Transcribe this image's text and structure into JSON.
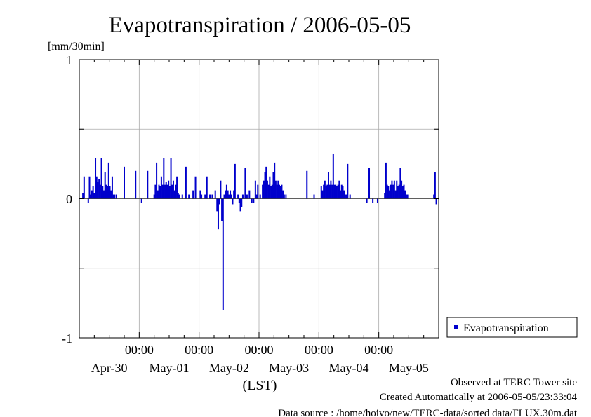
{
  "chart_data": {
    "type": "bar",
    "title": "Evapotranspiration / 2006-05-05",
    "ylabel": "[mm/30min]",
    "xlabel": "(LST)",
    "ylim": [
      -1,
      1
    ],
    "yticks": [
      "1",
      "0",
      "-1"
    ],
    "time_labels": [
      "00:00",
      "00:00",
      "00:00",
      "00:00",
      "00:00"
    ],
    "date_labels": [
      "Apr-30",
      "May-01",
      "May-02",
      "May-03",
      "May-04",
      "May-05"
    ],
    "grid": true,
    "legend_position": "right",
    "xrange_days": [
      0,
      6
    ],
    "series": [
      {
        "name": "Evapotranspiration",
        "color": "#0000cc",
        "points": [
          [
            0.06,
            0.04
          ],
          [
            0.08,
            0.16
          ],
          [
            0.15,
            -0.03
          ],
          [
            0.17,
            0.16
          ],
          [
            0.19,
            0.03
          ],
          [
            0.21,
            0.06
          ],
          [
            0.23,
            0.09
          ],
          [
            0.25,
            0.04
          ],
          [
            0.27,
            0.29
          ],
          [
            0.29,
            0.16
          ],
          [
            0.31,
            0.12
          ],
          [
            0.33,
            0.14
          ],
          [
            0.35,
            0.1
          ],
          [
            0.37,
            0.29
          ],
          [
            0.39,
            0.09
          ],
          [
            0.41,
            0.06
          ],
          [
            0.43,
            0.19
          ],
          [
            0.45,
            0.1
          ],
          [
            0.47,
            0.09
          ],
          [
            0.49,
            0.26
          ],
          [
            0.51,
            0.09
          ],
          [
            0.53,
            0.06
          ],
          [
            0.55,
            0.16
          ],
          [
            0.57,
            0.03
          ],
          [
            0.59,
            0.03
          ],
          [
            0.62,
            0.03
          ],
          [
            0.75,
            0.23
          ],
          [
            0.94,
            0.2
          ],
          [
            1.04,
            -0.03
          ],
          [
            1.14,
            0.2
          ],
          [
            1.25,
            0.03
          ],
          [
            1.27,
            0.1
          ],
          [
            1.29,
            0.26
          ],
          [
            1.31,
            0.06
          ],
          [
            1.33,
            0.1
          ],
          [
            1.35,
            0.09
          ],
          [
            1.37,
            0.16
          ],
          [
            1.39,
            0.1
          ],
          [
            1.41,
            0.29
          ],
          [
            1.43,
            0.1
          ],
          [
            1.45,
            0.12
          ],
          [
            1.47,
            0.1
          ],
          [
            1.49,
            0.13
          ],
          [
            1.51,
            0.09
          ],
          [
            1.53,
            0.29
          ],
          [
            1.55,
            0.1
          ],
          [
            1.57,
            0.13
          ],
          [
            1.59,
            0.06
          ],
          [
            1.61,
            0.1
          ],
          [
            1.63,
            0.16
          ],
          [
            1.65,
            0.04
          ],
          [
            1.67,
            0.03
          ],
          [
            1.72,
            0.03
          ],
          [
            1.78,
            0.23
          ],
          [
            1.83,
            0.03
          ],
          [
            1.9,
            0.06
          ],
          [
            1.94,
            0.16
          ],
          [
            2.02,
            0.06
          ],
          [
            2.04,
            0.03
          ],
          [
            2.1,
            0.03
          ],
          [
            2.13,
            0.16
          ],
          [
            2.18,
            0.03
          ],
          [
            2.22,
            0.03
          ],
          [
            2.27,
            0.06
          ],
          [
            2.3,
            -0.09
          ],
          [
            2.32,
            -0.22
          ],
          [
            2.34,
            -0.04
          ],
          [
            2.36,
            0.13
          ],
          [
            2.38,
            -0.16
          ],
          [
            2.4,
            -0.8
          ],
          [
            2.42,
            0.03
          ],
          [
            2.44,
            0.06
          ],
          [
            2.46,
            0.1
          ],
          [
            2.48,
            0.06
          ],
          [
            2.5,
            0.03
          ],
          [
            2.52,
            0.06
          ],
          [
            2.54,
            0.03
          ],
          [
            2.56,
            -0.04
          ],
          [
            2.58,
            0.06
          ],
          [
            2.6,
            0.25
          ],
          [
            2.65,
            0.03
          ],
          [
            2.67,
            -0.03
          ],
          [
            2.69,
            -0.09
          ],
          [
            2.71,
            -0.06
          ],
          [
            2.73,
            0.03
          ],
          [
            2.77,
            0.22
          ],
          [
            2.8,
            0.03
          ],
          [
            2.84,
            0.06
          ],
          [
            2.88,
            -0.03
          ],
          [
            2.91,
            -0.03
          ],
          [
            2.94,
            0.13
          ],
          [
            2.96,
            0.03
          ],
          [
            2.98,
            0.1
          ],
          [
            3.02,
            0.03
          ],
          [
            3.06,
            0.1
          ],
          [
            3.08,
            0.13
          ],
          [
            3.1,
            0.19
          ],
          [
            3.12,
            0.23
          ],
          [
            3.14,
            0.13
          ],
          [
            3.16,
            0.1
          ],
          [
            3.18,
            0.16
          ],
          [
            3.2,
            0.09
          ],
          [
            3.22,
            0.1
          ],
          [
            3.24,
            0.19
          ],
          [
            3.26,
            0.26
          ],
          [
            3.28,
            0.13
          ],
          [
            3.3,
            0.1
          ],
          [
            3.32,
            0.13
          ],
          [
            3.34,
            0.1
          ],
          [
            3.36,
            0.09
          ],
          [
            3.38,
            0.1
          ],
          [
            3.4,
            0.06
          ],
          [
            3.42,
            0.03
          ],
          [
            3.45,
            0.03
          ],
          [
            3.8,
            0.2
          ],
          [
            3.92,
            0.03
          ],
          [
            4.04,
            0.09
          ],
          [
            4.06,
            0.06
          ],
          [
            4.08,
            0.1
          ],
          [
            4.1,
            0.13
          ],
          [
            4.12,
            0.09
          ],
          [
            4.14,
            0.1
          ],
          [
            4.16,
            0.19
          ],
          [
            4.18,
            0.1
          ],
          [
            4.2,
            0.13
          ],
          [
            4.22,
            0.1
          ],
          [
            4.24,
            0.32
          ],
          [
            4.26,
            0.1
          ],
          [
            4.28,
            0.1
          ],
          [
            4.3,
            0.09
          ],
          [
            4.32,
            0.1
          ],
          [
            4.34,
            0.13
          ],
          [
            4.36,
            0.06
          ],
          [
            4.38,
            0.1
          ],
          [
            4.4,
            0.09
          ],
          [
            4.42,
            0.06
          ],
          [
            4.44,
            0.03
          ],
          [
            4.46,
            0.03
          ],
          [
            4.48,
            0.25
          ],
          [
            4.52,
            0.03
          ],
          [
            4.8,
            -0.03
          ],
          [
            4.84,
            0.22
          ],
          [
            4.9,
            -0.03
          ],
          [
            4.98,
            -0.03
          ],
          [
            5.1,
            0.04
          ],
          [
            5.12,
            0.26
          ],
          [
            5.14,
            0.1
          ],
          [
            5.16,
            0.09
          ],
          [
            5.18,
            0.06
          ],
          [
            5.2,
            0.1
          ],
          [
            5.22,
            0.13
          ],
          [
            5.24,
            0.1
          ],
          [
            5.26,
            0.13
          ],
          [
            5.28,
            0.06
          ],
          [
            5.3,
            0.13
          ],
          [
            5.32,
            0.09
          ],
          [
            5.34,
            0.1
          ],
          [
            5.36,
            0.22
          ],
          [
            5.38,
            0.13
          ],
          [
            5.4,
            0.09
          ],
          [
            5.42,
            0.1
          ],
          [
            5.44,
            0.06
          ],
          [
            5.46,
            0.03
          ],
          [
            5.48,
            0.03
          ],
          [
            5.92,
            0.03
          ],
          [
            5.94,
            0.19
          ],
          [
            5.96,
            -0.04
          ]
        ]
      }
    ]
  },
  "footer": {
    "observed": "Observed at TERC Tower site",
    "created": "Created Automatically at 2006-05-05/23:33:04",
    "source": "Data source : /home/hoivo/new/TERC-data/sorted data/FLUX.30m.dat"
  }
}
